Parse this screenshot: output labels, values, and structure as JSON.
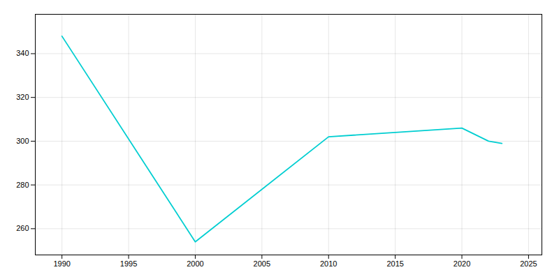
{
  "chart_data": {
    "type": "line",
    "x": [
      1990,
      2000,
      2010,
      2015,
      2020,
      2022,
      2023
    ],
    "values": [
      348,
      254,
      302,
      304,
      306,
      300,
      299
    ],
    "color": "#00CED1",
    "xlim": [
      1988,
      2026
    ],
    "ylim": [
      248,
      358
    ],
    "xticks": [
      1990,
      1995,
      2000,
      2005,
      2010,
      2015,
      2020,
      2025
    ],
    "yticks": [
      260,
      280,
      300,
      320,
      340
    ],
    "grid": true
  }
}
